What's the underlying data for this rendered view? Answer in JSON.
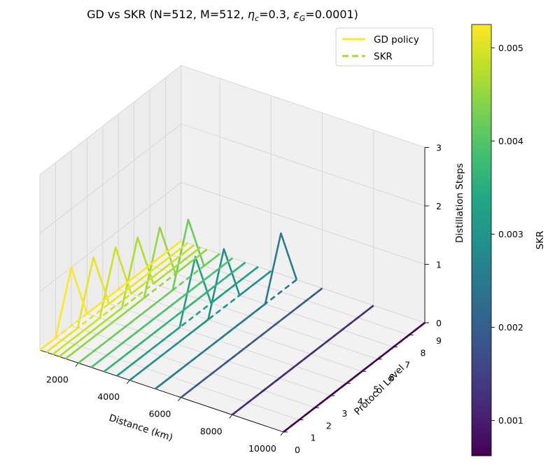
{
  "chart_data": {
    "type": "line3d",
    "title_parts": {
      "prefix": "GD vs SKR (N=512, M=512, ",
      "eta_sym": "η",
      "eta_sub": "c",
      "eta_val": "=0.3, ",
      "eps_sym": "ε",
      "eps_sub": "G",
      "eps_val": "=0.0001)"
    },
    "xlabel": "Distance (km)",
    "ylabel": "Protocol Level",
    "zlabel": "Distillation Steps",
    "x_ticks": [
      "2000",
      "4000",
      "6000",
      "8000",
      "10000"
    ],
    "x_tick_values": [
      2000,
      4000,
      6000,
      8000,
      10000
    ],
    "y_ticks": [
      "0",
      "1",
      "2",
      "3",
      "4",
      "5",
      "6",
      "7",
      "8",
      "9"
    ],
    "z_ticks": [
      "0",
      "1",
      "2",
      "3"
    ],
    "xlim": [
      500,
      10000
    ],
    "ylim": [
      0,
      9
    ],
    "zlim": [
      0,
      3
    ],
    "legend": [
      {
        "label": "GD policy",
        "style": "solid",
        "color": "#fde725"
      },
      {
        "label": "SKR",
        "style": "dashed",
        "color": "#a0da39"
      }
    ],
    "legend_position": "top-right",
    "colorbar": {
      "label": "SKR",
      "ticks": [
        "0.001",
        "0.002",
        "0.003",
        "0.004",
        "0.005"
      ],
      "tick_values": [
        0.001,
        0.002,
        0.003,
        0.004,
        0.005
      ],
      "range": [
        0.00062,
        0.00525
      ]
    },
    "series": [
      {
        "distance": 500,
        "skr": 0.00525,
        "peak_level": 2
      },
      {
        "distance": 750,
        "skr": 0.0051,
        "peak_level": 3
      },
      {
        "distance": 1000,
        "skr": 0.0049,
        "peak_level": 4
      },
      {
        "distance": 1250,
        "skr": 0.0047,
        "peak_level": 5
      },
      {
        "distance": 1500,
        "skr": 0.0045,
        "peak_level": 6
      },
      {
        "distance": 2000,
        "skr": 0.0042,
        "peak_level": 7
      },
      {
        "distance": 2500,
        "skr": 0.0039,
        "peak_level": null
      },
      {
        "distance": 3000,
        "skr": 0.0036,
        "peak_level": null
      },
      {
        "distance": 3500,
        "skr": 0.0032,
        "peak_level": 5
      },
      {
        "distance": 4000,
        "skr": 0.0029,
        "peak_level": 6
      },
      {
        "distance": 5000,
        "skr": 0.0025,
        "peak_level": 8
      },
      {
        "distance": 6000,
        "skr": 0.0019,
        "peak_level": null
      },
      {
        "distance": 8000,
        "skr": 0.0012,
        "peak_level": null
      },
      {
        "distance": 10000,
        "skr": 0.00062,
        "peak_level": null
      }
    ]
  }
}
